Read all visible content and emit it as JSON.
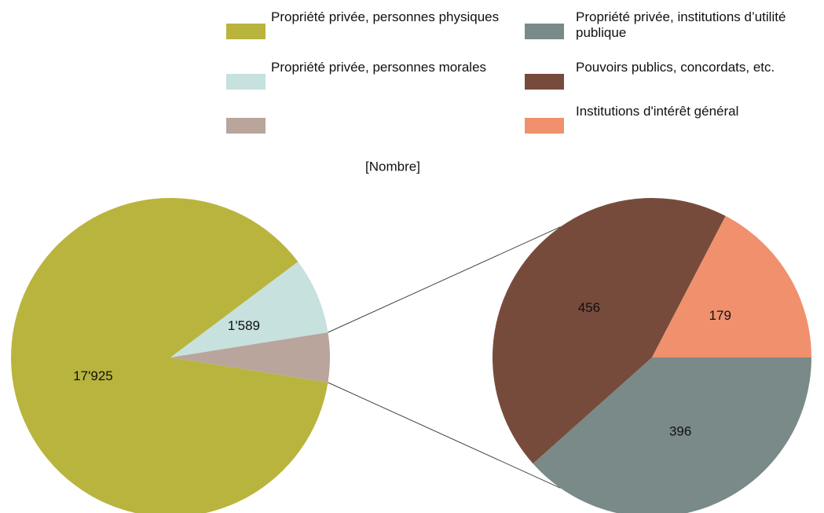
{
  "chart_data": [
    {
      "type": "pie",
      "title": "[Nombre]",
      "categories": [
        "Propriété privée, personnes physiques",
        "Propriété privée, personnes morales",
        null
      ],
      "values": [
        17925,
        1589,
        1031
      ],
      "value_labels": [
        "17'925",
        "1'589",
        null
      ],
      "colors": [
        "#b9b43d",
        "#c6e1de",
        "#b9a59c"
      ]
    },
    {
      "type": "pie",
      "categories": [
        "Propriété privée, institutions d’utilité publique",
        "Pouvoirs publics, concordats, etc.",
        "Institutions d'intérêt général"
      ],
      "values": [
        396,
        456,
        179
      ],
      "colors": [
        "#798a88",
        "#774b3c",
        "#f1906d"
      ]
    }
  ]
}
